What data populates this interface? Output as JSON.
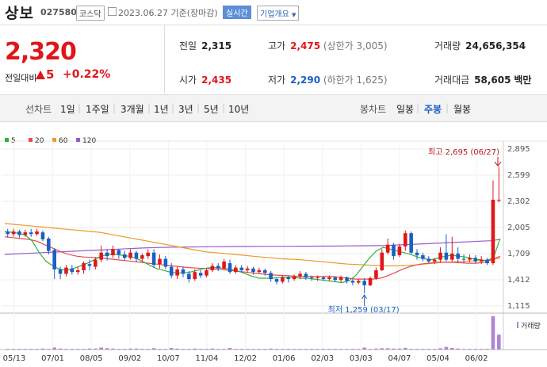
{
  "header": {
    "name": "상보",
    "code": "027580",
    "market": "코스닥",
    "date": "2023.06.27 기준(장마감)",
    "realtime_label": "실시간",
    "company_info_label": "기업개요"
  },
  "price": {
    "current": "2,320",
    "change_label": "전일대비",
    "change": "5",
    "change_pct": "+0.22%"
  },
  "stats": {
    "prev_label": "전일",
    "prev": "2,315",
    "high_label": "고가",
    "high": "2,475",
    "upper_limit": "(상한가 3,005)",
    "volume_label": "거래량",
    "volume": "24,656,354",
    "open_label": "시가",
    "open": "2,435",
    "low_label": "저가",
    "low": "2,290",
    "lower_limit": "(하한가 1,625)",
    "amount_label": "거래대금",
    "amount": "58,605",
    "amount_unit": "백만"
  },
  "tabs": {
    "line_label": "선차트",
    "line": [
      "1일",
      "1주일",
      "3개월",
      "1년",
      "3년",
      "5년",
      "10년"
    ],
    "candle_label": "봉차트",
    "candle": [
      "일봉",
      "주봉",
      "월봉"
    ],
    "selected": "주봉"
  },
  "colors": {
    "up": "#e0161a",
    "down": "#1b5ec7",
    "ma5": "#2db43c",
    "ma20": "#e84a4a",
    "ma60": "#f0982a",
    "ma120": "#9b59d0"
  },
  "chart_data": {
    "type": "candlestick",
    "legend": [
      {
        "name": "5",
        "color": "#2db43c"
      },
      {
        "name": "20",
        "color": "#e84a4a"
      },
      {
        "name": "60",
        "color": "#f0982a"
      },
      {
        "name": "120",
        "color": "#9b59d0"
      }
    ],
    "x_ticks": [
      "05/13",
      "07/01",
      "08/05",
      "09/02",
      "10/07",
      "11/04",
      "12/02",
      "01/06",
      "02/03",
      "03/03",
      "04/07",
      "05/04",
      "06/02"
    ],
    "y_ticks": [
      2895,
      2599,
      2302,
      2005,
      1709,
      1412,
      1115
    ],
    "ylim": [
      1115,
      2895
    ],
    "high_note": "최고 2,695 (06/27)",
    "low_note": "최저 1,259 (03/17)",
    "volume_label": "거래량",
    "candles": [
      [
        1960,
        1930,
        1990,
        1890
      ],
      [
        1930,
        1960,
        1990,
        1900
      ],
      [
        1960,
        1920,
        1980,
        1890
      ],
      [
        1920,
        1950,
        1980,
        1900
      ],
      [
        1950,
        1930,
        1990,
        1900
      ],
      [
        1930,
        1960,
        1990,
        1910
      ],
      [
        1950,
        1870,
        1970,
        1850
      ],
      [
        1880,
        1740,
        1900,
        1700
      ],
      [
        1750,
        1530,
        1770,
        1420
      ],
      [
        1530,
        1480,
        1560,
        1420
      ],
      [
        1480,
        1550,
        1580,
        1450
      ],
      [
        1540,
        1500,
        1580,
        1470
      ],
      [
        1500,
        1520,
        1560,
        1470
      ],
      [
        1520,
        1600,
        1620,
        1480
      ],
      [
        1590,
        1570,
        1640,
        1520
      ],
      [
        1560,
        1640,
        1670,
        1530
      ],
      [
        1640,
        1720,
        1800,
        1610
      ],
      [
        1720,
        1680,
        1760,
        1630
      ],
      [
        1690,
        1760,
        1800,
        1660
      ],
      [
        1750,
        1700,
        1760,
        1650
      ],
      [
        1700,
        1660,
        1740,
        1630
      ],
      [
        1660,
        1720,
        1760,
        1640
      ],
      [
        1720,
        1650,
        1740,
        1610
      ],
      [
        1650,
        1690,
        1710,
        1620
      ],
      [
        1680,
        1720,
        1760,
        1650
      ],
      [
        1720,
        1580,
        1760,
        1550
      ],
      [
        1590,
        1650,
        1700,
        1540
      ],
      [
        1650,
        1560,
        1680,
        1530
      ],
      [
        1560,
        1460,
        1600,
        1430
      ],
      [
        1460,
        1530,
        1560,
        1420
      ],
      [
        1530,
        1480,
        1560,
        1440
      ],
      [
        1480,
        1420,
        1510,
        1380
      ],
      [
        1420,
        1500,
        1530,
        1400
      ],
      [
        1490,
        1460,
        1520,
        1430
      ],
      [
        1460,
        1520,
        1540,
        1440
      ],
      [
        1520,
        1570,
        1600,
        1500
      ],
      [
        1570,
        1540,
        1600,
        1510
      ],
      [
        1540,
        1620,
        1650,
        1520
      ],
      [
        1600,
        1500,
        1640,
        1480
      ],
      [
        1500,
        1550,
        1580,
        1480
      ],
      [
        1550,
        1520,
        1580,
        1490
      ],
      [
        1520,
        1540,
        1570,
        1490
      ],
      [
        1540,
        1500,
        1560,
        1470
      ],
      [
        1500,
        1520,
        1550,
        1480
      ],
      [
        1520,
        1490,
        1540,
        1460
      ],
      [
        1490,
        1420,
        1510,
        1390
      ],
      [
        1420,
        1390,
        1440,
        1360
      ],
      [
        1390,
        1440,
        1460,
        1370
      ],
      [
        1440,
        1420,
        1460,
        1380
      ],
      [
        1420,
        1450,
        1470,
        1400
      ],
      [
        1450,
        1480,
        1510,
        1420
      ],
      [
        1480,
        1440,
        1500,
        1410
      ],
      [
        1440,
        1430,
        1460,
        1400
      ],
      [
        1430,
        1440,
        1460,
        1400
      ],
      [
        1440,
        1420,
        1450,
        1400
      ],
      [
        1420,
        1440,
        1460,
        1400
      ],
      [
        1440,
        1410,
        1450,
        1390
      ],
      [
        1410,
        1440,
        1460,
        1380
      ],
      [
        1440,
        1400,
        1450,
        1370
      ],
      [
        1400,
        1380,
        1420,
        1350
      ],
      [
        1380,
        1400,
        1420,
        1360
      ],
      [
        1400,
        1350,
        1430,
        1259
      ],
      [
        1350,
        1430,
        1450,
        1340
      ],
      [
        1430,
        1520,
        1550,
        1410
      ],
      [
        1520,
        1720,
        1760,
        1510
      ],
      [
        1720,
        1810,
        1880,
        1700
      ],
      [
        1810,
        1680,
        1830,
        1640
      ],
      [
        1690,
        1790,
        1820,
        1670
      ],
      [
        1790,
        1940,
        1970,
        1740
      ],
      [
        1940,
        1720,
        1960,
        1700
      ],
      [
        1720,
        1690,
        1760,
        1640
      ],
      [
        1690,
        1650,
        1720,
        1620
      ],
      [
        1650,
        1620,
        1680,
        1600
      ],
      [
        1620,
        1640,
        1660,
        1590
      ],
      [
        1640,
        1720,
        1780,
        1610
      ],
      [
        1720,
        1640,
        1930,
        1620
      ],
      [
        1640,
        1710,
        1900,
        1620
      ],
      [
        1710,
        1650,
        1780,
        1610
      ],
      [
        1650,
        1640,
        1700,
        1600
      ],
      [
        1640,
        1660,
        1700,
        1610
      ],
      [
        1660,
        1620,
        1690,
        1600
      ],
      [
        1620,
        1640,
        1680,
        1590
      ],
      [
        1640,
        1600,
        1660,
        1580
      ],
      [
        1600,
        2320,
        2540,
        1580
      ],
      [
        2315,
        2320,
        2695,
        2290
      ]
    ],
    "ma_y": {
      "ma5": [
        1960,
        1950,
        1940,
        1920,
        1850,
        1720,
        1620,
        1570,
        1530,
        1520,
        1540,
        1570,
        1600,
        1640,
        1680,
        1700,
        1700,
        1690,
        1680,
        1660,
        1620,
        1580,
        1540,
        1520,
        1500,
        1490,
        1490,
        1500,
        1520,
        1540,
        1550,
        1550,
        1540,
        1530,
        1510,
        1480,
        1450,
        1430,
        1430,
        1430,
        1440,
        1440,
        1440,
        1430,
        1430,
        1420,
        1410,
        1400,
        1390,
        1380,
        1400,
        1460,
        1560,
        1660,
        1740,
        1780,
        1760,
        1740,
        1720,
        1700,
        1670,
        1650,
        1640,
        1660,
        1680,
        1690,
        1680,
        1670,
        1650,
        1640,
        1630,
        1660,
        1880
      ],
      "ma20": [
        1900,
        1890,
        1880,
        1870,
        1850,
        1810,
        1770,
        1730,
        1700,
        1680,
        1670,
        1665,
        1660,
        1650,
        1640,
        1630,
        1620,
        1610,
        1600,
        1590,
        1580,
        1570,
        1560,
        1550,
        1545,
        1540,
        1535,
        1530,
        1520,
        1510,
        1500,
        1490,
        1480,
        1470,
        1465,
        1460,
        1455,
        1450,
        1450,
        1450,
        1450,
        1450,
        1440,
        1430,
        1420,
        1420,
        1420,
        1430,
        1460,
        1500,
        1540,
        1570,
        1590,
        1600,
        1610,
        1610,
        1610,
        1605,
        1600,
        1600,
        1610,
        1640,
        1680
      ],
      "ma60": [
        2050,
        2040,
        2030,
        2020,
        2010,
        2000,
        1990,
        1980,
        1970,
        1960,
        1950,
        1930,
        1910,
        1890,
        1870,
        1850,
        1830,
        1810,
        1790,
        1770,
        1750,
        1730,
        1720,
        1710,
        1700,
        1690,
        1680,
        1670,
        1660,
        1650,
        1645,
        1640,
        1630,
        1620,
        1610,
        1600,
        1590,
        1585,
        1580,
        1575,
        1570,
        1570,
        1575,
        1580,
        1590,
        1600,
        1610,
        1615,
        1620,
        1625,
        1630,
        1640,
        1660
      ],
      "ma120": [
        1700,
        1705,
        1710,
        1715,
        1720,
        1725,
        1730,
        1735,
        1740,
        1745,
        1750,
        1755,
        1760,
        1765,
        1770,
        1775,
        1778,
        1780,
        1782,
        1784,
        1785,
        1786,
        1787,
        1788,
        1789,
        1790,
        1790,
        1791,
        1791,
        1792,
        1792,
        1793,
        1793,
        1794,
        1794,
        1795,
        1796,
        1797,
        1798,
        1799,
        1800,
        1805,
        1810,
        1815,
        1820,
        1825,
        1830,
        1835,
        1840,
        1845,
        1850,
        1855,
        1870
      ]
    },
    "volume": [
      2,
      2,
      2,
      2,
      2,
      2,
      3,
      2,
      6,
      3,
      2,
      2,
      2,
      2,
      3,
      3,
      6,
      4,
      3,
      2,
      2,
      3,
      3,
      2,
      2,
      4,
      2,
      2,
      5,
      3,
      2,
      2,
      3,
      2,
      2,
      3,
      2,
      2,
      5,
      2,
      2,
      2,
      2,
      2,
      2,
      3,
      2,
      2,
      2,
      2,
      2,
      2,
      2,
      2,
      2,
      2,
      2,
      2,
      2,
      2,
      2,
      6,
      2,
      3,
      4,
      4,
      3,
      3,
      5,
      2,
      2,
      2,
      2,
      2,
      4,
      8,
      5,
      3,
      2,
      2,
      2,
      2,
      2,
      100,
      45
    ]
  }
}
